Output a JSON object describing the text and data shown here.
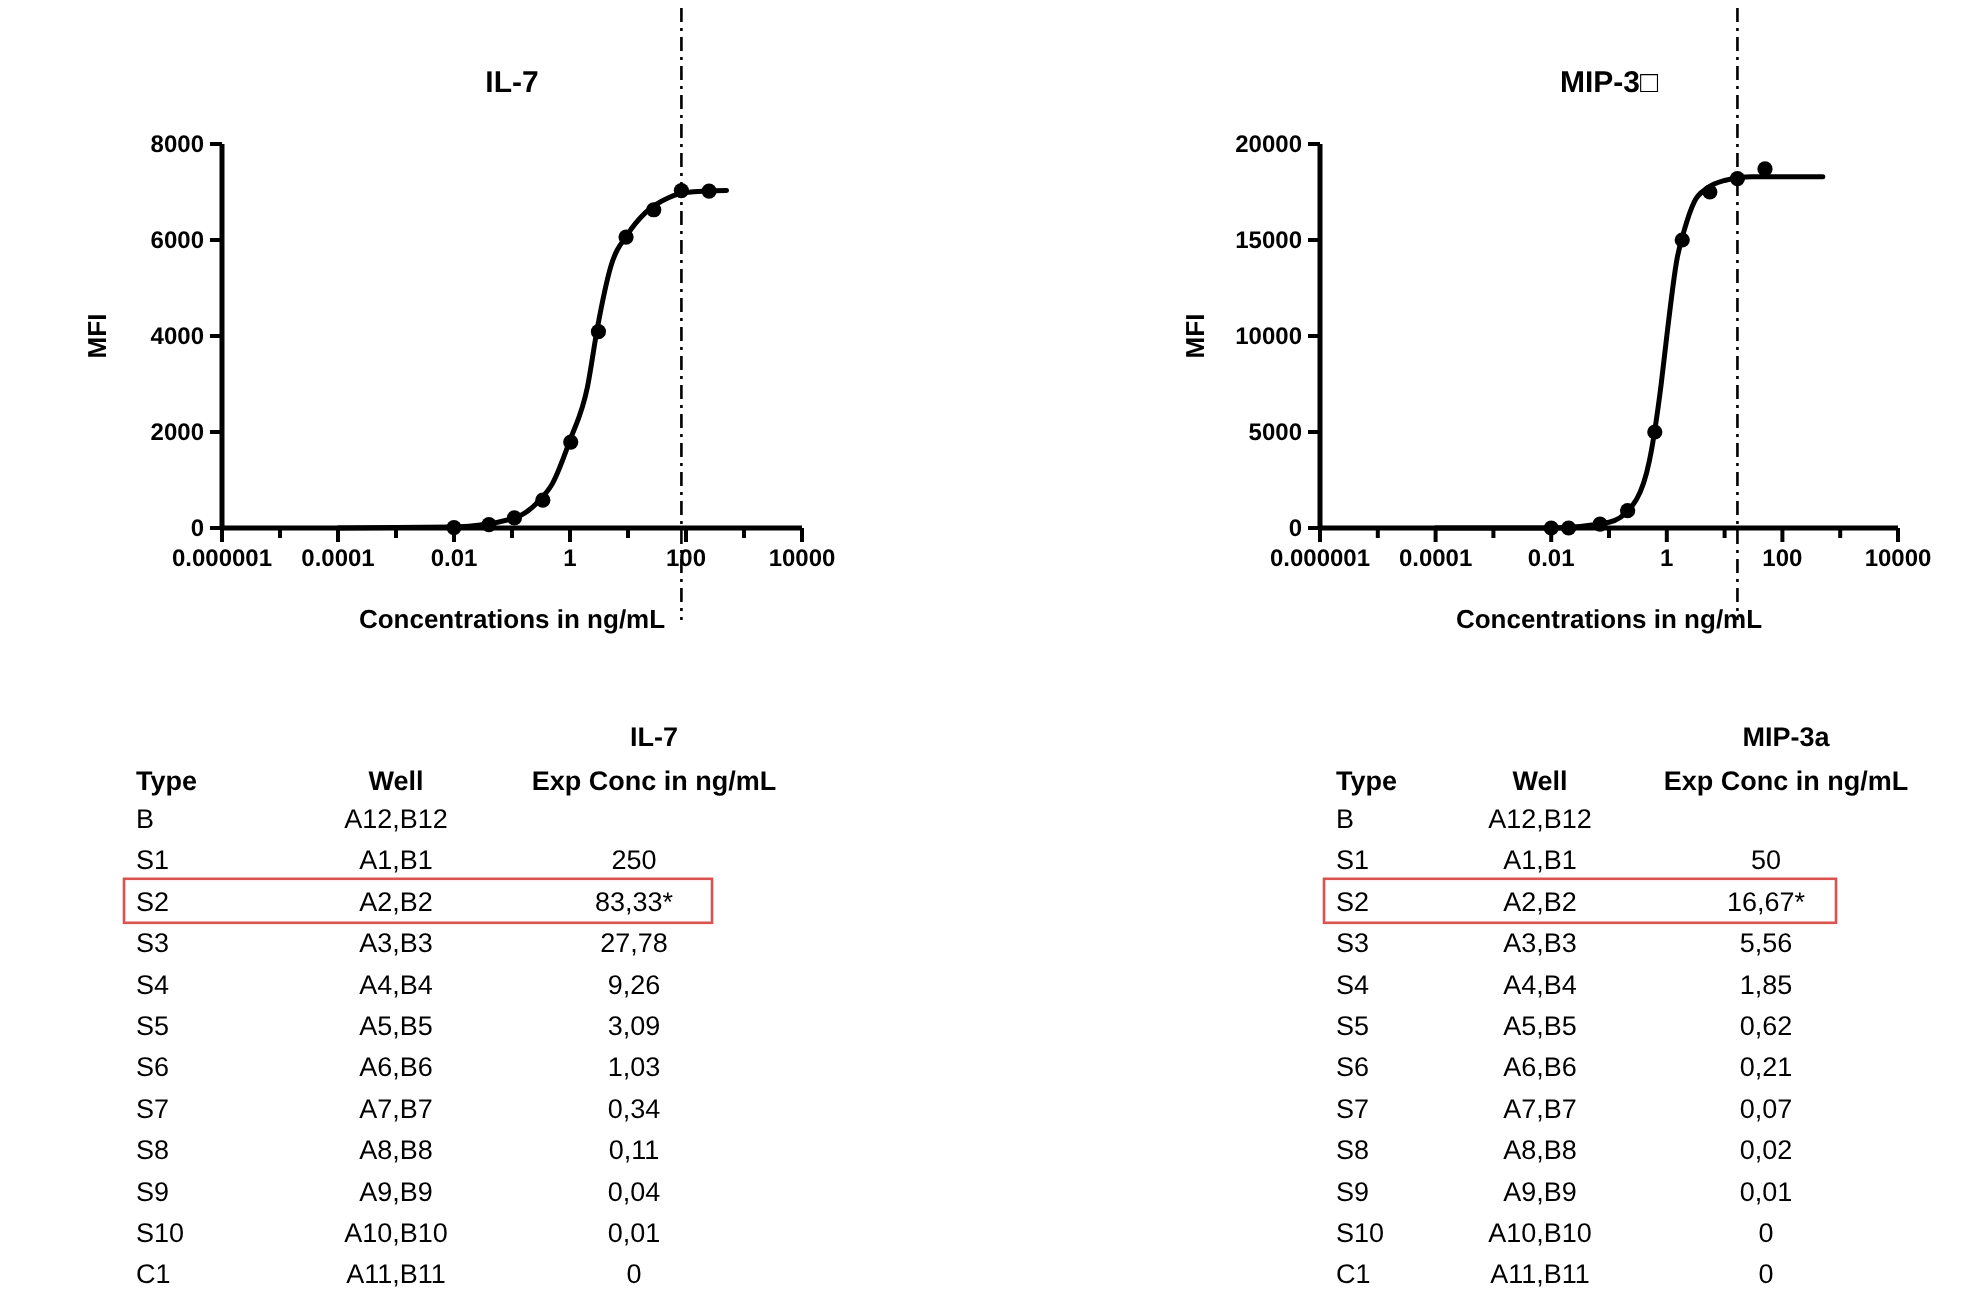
{
  "chart_data": [
    {
      "type": "scatter",
      "title": "IL-7",
      "xlabel": "Concentrations in ng/mL",
      "ylabel": "MFI",
      "log": "x",
      "grid": false,
      "xlim": [
        1e-06,
        10000
      ],
      "xticks": [
        {
          "value": 1e-06,
          "label": "0.000001"
        },
        {
          "value": 1e-05,
          "label": null
        },
        0.0001,
        {
          "value": 0.001,
          "label": null
        },
        0.01,
        {
          "value": 0.1,
          "label": null
        },
        1,
        {
          "value": 10,
          "label": null
        },
        100,
        {
          "value": 1000,
          "label": null
        },
        10000
      ],
      "ylim": [
        0,
        8000
      ],
      "yticks": [
        0,
        2000,
        4000,
        6000,
        8000
      ],
      "series": [
        {
          "type": "scatter",
          "marker": "circle",
          "color": "#000000",
          "x": [
            0.01,
            0.04,
            0.11,
            0.34,
            1.03,
            3.09,
            9.26,
            27.78,
            83.33,
            250
          ],
          "values": [
            10,
            70,
            210,
            580,
            1790,
            4090,
            6060,
            6630,
            7030,
            7020
          ]
        },
        {
          "type": "line",
          "color": "#000000",
          "x": [
            0.0001,
            0.01,
            0.1,
            0.3,
            0.5,
            1,
            2,
            3,
            5,
            10,
            20,
            50,
            100,
            500
          ],
          "values": [
            0,
            20,
            190,
            580,
            930,
            1830,
            2940,
            4200,
            5430,
            6130,
            6570,
            6880,
            6990,
            7030
          ]
        }
      ],
      "ref_lines": [
        {
          "axis": "x",
          "value": 83.33,
          "line_style": "dashed",
          "color": "#000000"
        }
      ]
    },
    {
      "type": "scatter",
      "title": "MIP-3□",
      "xlabel": "Concentrations in ng/mL",
      "ylabel": "MFI",
      "log": "x",
      "grid": false,
      "xlim": [
        1e-06,
        10000
      ],
      "xticks": [
        {
          "value": 1e-06,
          "label": "0.000001"
        },
        {
          "value": 1e-05,
          "label": null
        },
        0.0001,
        {
          "value": 0.001,
          "label": null
        },
        0.01,
        {
          "value": 0.1,
          "label": null
        },
        1,
        {
          "value": 10,
          "label": null
        },
        100,
        {
          "value": 1000,
          "label": null
        },
        10000
      ],
      "ylim": [
        0,
        20000
      ],
      "yticks": [
        0,
        5000,
        10000,
        15000,
        20000
      ],
      "series": [
        {
          "type": "scatter",
          "marker": "circle",
          "color": "#000000",
          "x": [
            0.01,
            0.02,
            0.07,
            0.21,
            0.62,
            1.85,
            5.56,
            16.67,
            50
          ],
          "values": [
            0,
            0,
            200,
            900,
            5000,
            15000,
            17500,
            18200,
            18700
          ]
        },
        {
          "type": "line",
          "color": "#000000",
          "x": [
            0.0001,
            0.01,
            0.1,
            0.3,
            0.5,
            0.8,
            1,
            1.5,
            2,
            3,
            5,
            10,
            30,
            500
          ],
          "values": [
            0,
            0,
            300,
            1500,
            3500,
            7500,
            10000,
            14000,
            15500,
            17000,
            17700,
            18100,
            18300,
            18300
          ]
        }
      ],
      "ref_lines": [
        {
          "axis": "x",
          "value": 16.67,
          "line_style": "dashed",
          "color": "#000000"
        }
      ]
    },
    {
      "type": "other",
      "title": "IL-7",
      "categories": [
        "Type",
        "Well",
        "Exp Conc in ng/mL"
      ],
      "cell_labels": [
        [
          "B",
          "A12,B12",
          null
        ],
        [
          "S1",
          "A1,B1",
          "250"
        ],
        [
          "S2",
          "A2,B2",
          "83,33*"
        ],
        [
          "S3",
          "A3,B3",
          "27,78"
        ],
        [
          "S4",
          "A4,B4",
          "9,26"
        ],
        [
          "S5",
          "A5,B5",
          "3,09"
        ],
        [
          "S6",
          "A6,B6",
          "1,03"
        ],
        [
          "S7",
          "A7,B7",
          "0,34"
        ],
        [
          "S8",
          "A8,B8",
          "0,11"
        ],
        [
          "S9",
          "A9,B9",
          "0,04"
        ],
        [
          "S10",
          "A10,B10",
          "0,01"
        ],
        [
          "C1",
          "A11,B11",
          "0"
        ]
      ]
    },
    {
      "type": "other",
      "title": "MIP-3a",
      "categories": [
        "Type",
        "Well",
        "Exp Conc in ng/mL"
      ],
      "cell_labels": [
        [
          "B",
          "A12,B12",
          null
        ],
        [
          "S1",
          "A1,B1",
          "50"
        ],
        [
          "S2",
          "A2,B2",
          "16,67*"
        ],
        [
          "S3",
          "A3,B3",
          "5,56"
        ],
        [
          "S4",
          "A4,B4",
          "1,85"
        ],
        [
          "S5",
          "A5,B5",
          "0,62"
        ],
        [
          "S6",
          "A6,B6",
          "0,21"
        ],
        [
          "S7",
          "A7,B7",
          "0,07"
        ],
        [
          "S8",
          "A8,B8",
          "0,02"
        ],
        [
          "S9",
          "A9,B9",
          "0,01"
        ],
        [
          "S10",
          "A10,B10",
          "0"
        ],
        [
          "C1",
          "A11,B11",
          "0"
        ]
      ]
    }
  ]
}
